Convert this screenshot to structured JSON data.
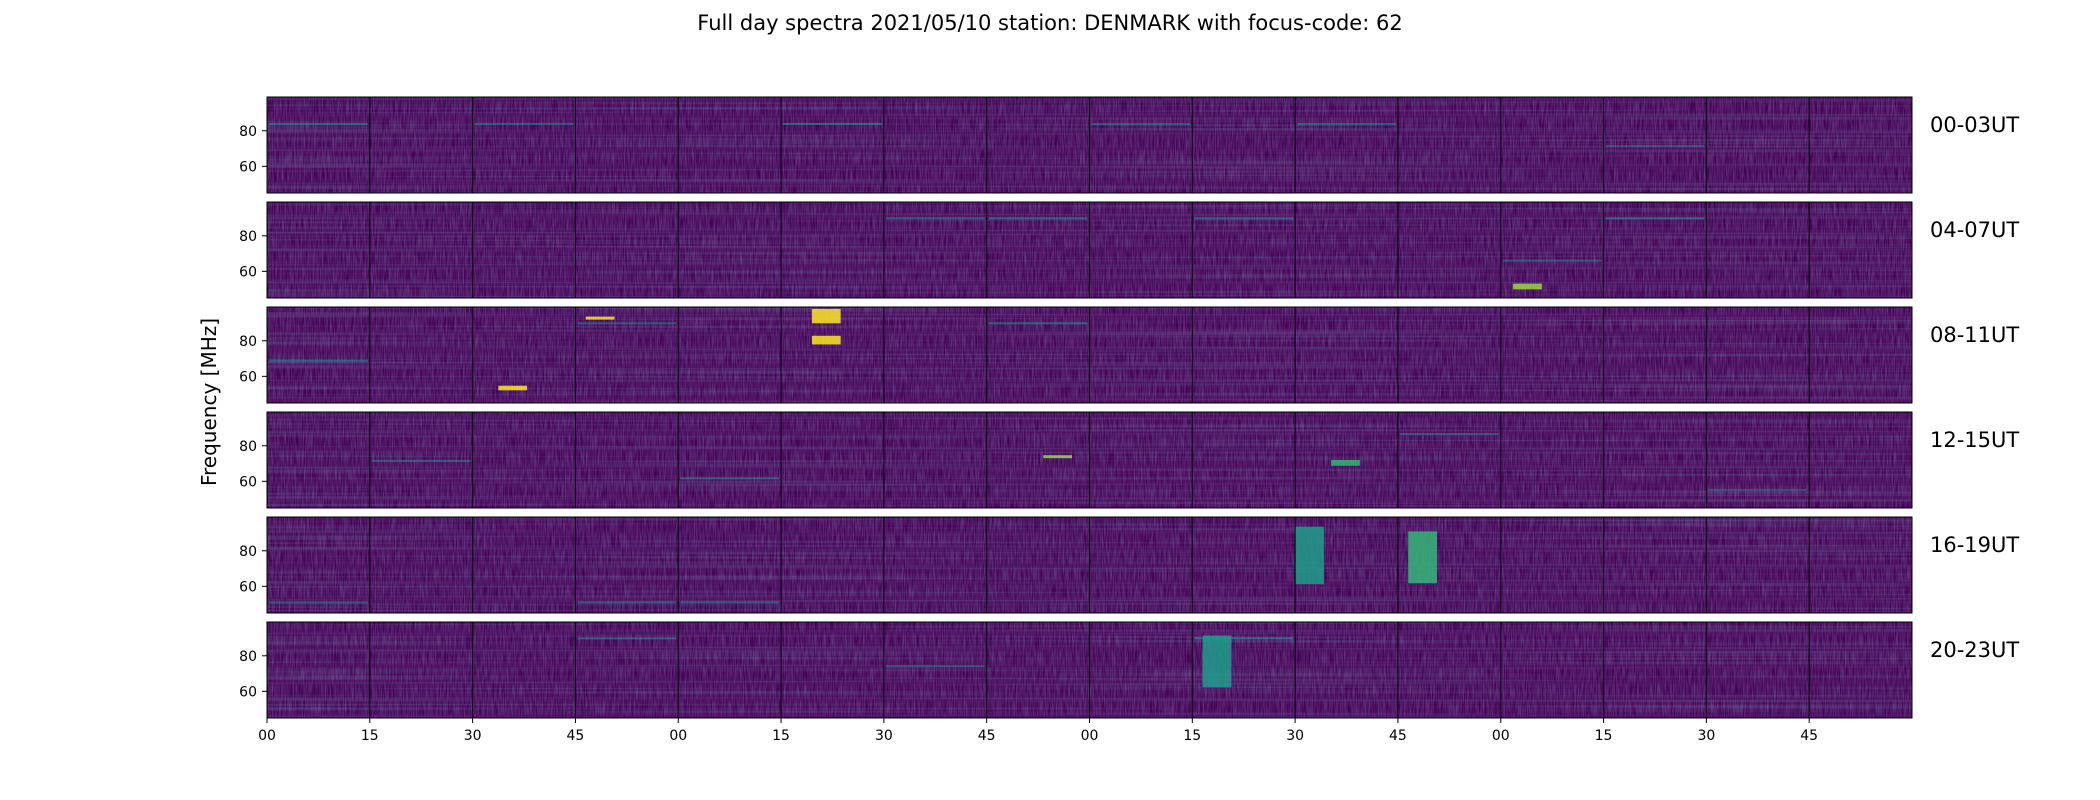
{
  "chart_data": {
    "type": "heatmap",
    "title": "Full day spectra 2021/05/10 station: DENMARK with focus-code: 62",
    "ylabel": "Frequency [MHz]",
    "xlabel": "",
    "ylim": [
      45,
      99
    ],
    "y_ticks": [
      60,
      80
    ],
    "x_tick_labels": [
      "00",
      "15",
      "30",
      "45",
      "00",
      "15",
      "30",
      "45",
      "00",
      "15",
      "30",
      "45",
      "00",
      "15",
      "30",
      "45"
    ],
    "colormap": "viridis",
    "colors": {
      "background": "#440154",
      "low": "#46327e",
      "mid": "#277f8e",
      "high": "#fde725"
    },
    "grid": false,
    "rows": [
      {
        "label": "00-03UT",
        "hours": [
          "00",
          "01",
          "02",
          "03"
        ],
        "panels_per_hour": 4,
        "lines": [
          [
            0,
            0.73,
            0.16
          ],
          [
            2,
            0.73,
            0.1
          ],
          [
            5,
            0.73,
            0.18
          ],
          [
            8,
            0.73,
            0.12
          ],
          [
            10,
            0.73,
            0.14
          ],
          [
            13,
            0.5,
            0.05
          ]
        ],
        "bursts": []
      },
      {
        "label": "04-07UT",
        "hours": [
          "04",
          "05",
          "06",
          "07"
        ],
        "panels_per_hour": 4,
        "lines": [
          [
            6,
            0.84,
            0.14
          ],
          [
            7,
            0.84,
            0.18
          ],
          [
            9,
            0.84,
            0.16
          ],
          [
            12,
            0.4,
            0.12
          ],
          [
            13,
            0.84,
            0.18
          ]
        ],
        "bursts": [
          [
            12,
            0.12,
            0.15,
            0.1,
            "#9bd93c"
          ]
        ]
      },
      {
        "label": "08-11UT",
        "hours": [
          "08",
          "09",
          "10",
          "11"
        ],
        "panels_per_hour": 4,
        "lines": [
          [
            0,
            0.45,
            0.14
          ],
          [
            3,
            0.84,
            0.1
          ],
          [
            7,
            0.84,
            0.16
          ]
        ],
        "bursts": [
          [
            5,
            0.3,
            0.98,
            0.25,
            "#fde725"
          ],
          [
            5,
            0.3,
            0.7,
            0.15,
            "#fde725"
          ],
          [
            2,
            0.25,
            0.18,
            0.08,
            "#fde725"
          ],
          [
            3,
            0.1,
            0.9,
            0.05,
            "#fde725"
          ]
        ]
      },
      {
        "label": "12-15UT",
        "hours": [
          "12",
          "13",
          "14",
          "15"
        ],
        "panels_per_hour": 4,
        "lines": [
          [
            1,
            0.5,
            0.12
          ],
          [
            4,
            0.32,
            0.16
          ],
          [
            11,
            0.78,
            0.12
          ],
          [
            14,
            0.2,
            0.08
          ]
        ],
        "bursts": [
          [
            10,
            0.35,
            0.5,
            0.1,
            "#35b779"
          ],
          [
            7,
            0.55,
            0.55,
            0.04,
            "#9bd93c"
          ]
        ]
      },
      {
        "label": "16-19UT",
        "hours": [
          "16",
          "17",
          "18",
          "19"
        ],
        "panels_per_hour": 4,
        "lines": [
          [
            0,
            0.12,
            0.12
          ],
          [
            3,
            0.12,
            0.14
          ],
          [
            4,
            0.12,
            0.12
          ]
        ],
        "bursts": [
          [
            10,
            0.0,
            0.9,
            1.0,
            "#1f9e89"
          ],
          [
            11,
            0.1,
            0.85,
            0.9,
            "#35b779"
          ]
        ]
      },
      {
        "label": "20-23UT",
        "hours": [
          "20",
          "21",
          "22",
          "23"
        ],
        "panels_per_hour": 4,
        "lines": [
          [
            3,
            0.84,
            0.16
          ],
          [
            6,
            0.55,
            0.1
          ],
          [
            9,
            0.84,
            0.2
          ]
        ],
        "bursts": [
          [
            9,
            0.1,
            0.86,
            0.9,
            "#1f9e89"
          ]
        ]
      }
    ]
  }
}
